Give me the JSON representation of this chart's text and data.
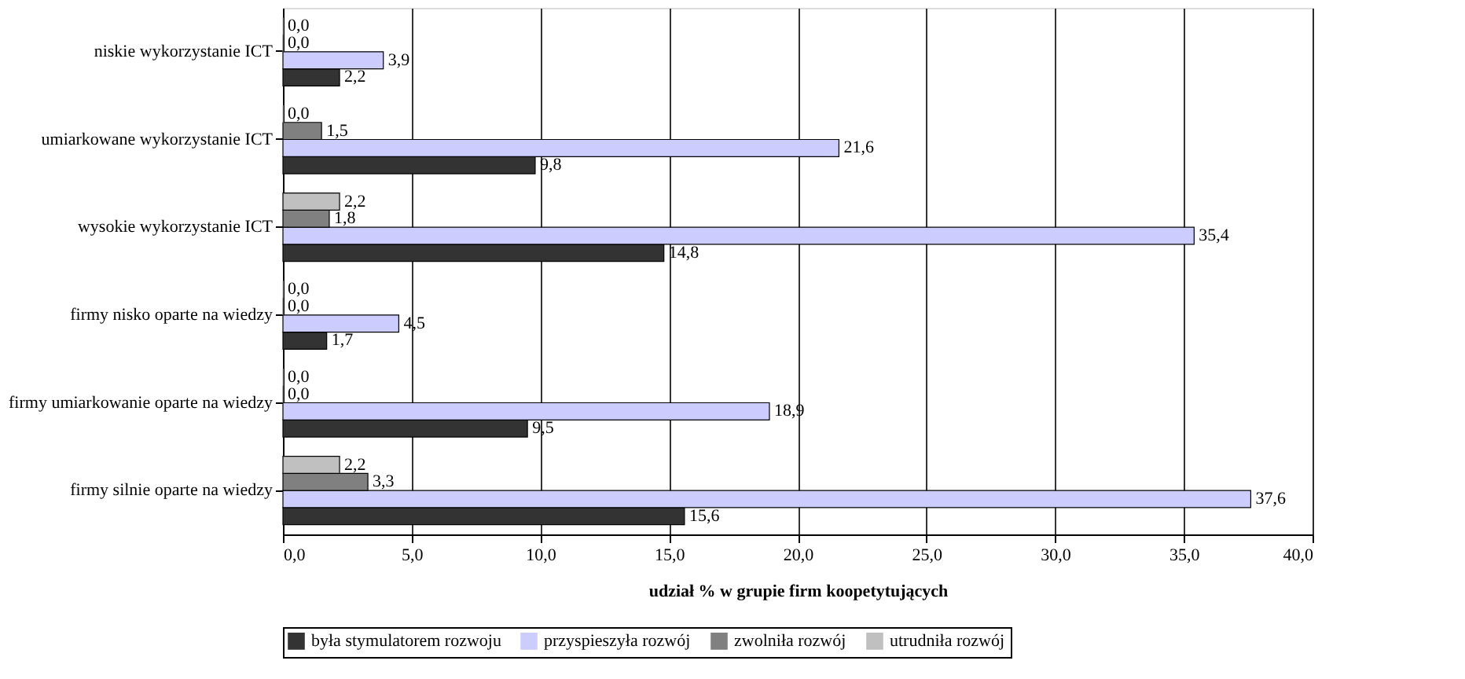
{
  "chart_data": {
    "type": "bar",
    "orientation": "horizontal",
    "xlabel": "udział % w grupie firm koopetytujących",
    "categories": [
      "niskie wykorzystanie ICT",
      "umiarkowane wykorzystanie ICT",
      "wysokie wykorzystanie ICT",
      "firmy nisko oparte na wiedzy",
      "firmy umiarkowanie oparte na wiedzy",
      "firmy silnie oparte na wiedzy"
    ],
    "series": [
      {
        "name": "była stymulatorem rozwoju",
        "color": "#333333",
        "values": [
          2.2,
          9.8,
          14.8,
          1.7,
          9.5,
          15.6
        ],
        "value_labels": [
          "2,2",
          "9,8",
          "14,8",
          "1,7",
          "9,5",
          "15,6"
        ]
      },
      {
        "name": "przyspieszyła rozwój",
        "color": "#ccccff",
        "values": [
          3.9,
          21.6,
          35.4,
          4.5,
          18.9,
          37.6
        ],
        "value_labels": [
          "3,9",
          "21,6",
          "35,4",
          "4,5",
          "18,9",
          "37,6"
        ]
      },
      {
        "name": "zwolniła rozwój",
        "color": "#808080",
        "values": [
          0.0,
          1.5,
          1.8,
          0.0,
          0.0,
          3.3
        ],
        "value_labels": [
          "0,0",
          "1,5",
          "1,8",
          "0,0",
          "0,0",
          "3,3"
        ]
      },
      {
        "name": "utrudniła rozwój",
        "color": "#c0c0c0",
        "values": [
          0.0,
          0.0,
          2.2,
          0.0,
          0.0,
          2.2
        ],
        "value_labels": [
          "0,0",
          "0,0",
          "2,2",
          "0,0",
          "0,0",
          "2,2"
        ]
      }
    ],
    "xlim": [
      0,
      40
    ],
    "xticks": [
      {
        "value": 0,
        "label": "0,0"
      },
      {
        "value": 5,
        "label": "5,0"
      },
      {
        "value": 10,
        "label": "10,0"
      },
      {
        "value": 15,
        "label": "15,0"
      },
      {
        "value": 20,
        "label": "20,0"
      },
      {
        "value": 25,
        "label": "25,0"
      },
      {
        "value": 30,
        "label": "30,0"
      },
      {
        "value": 35,
        "label": "35,0"
      },
      {
        "value": 40,
        "label": "40,0"
      }
    ],
    "grid": "x",
    "legend": "bottom"
  }
}
